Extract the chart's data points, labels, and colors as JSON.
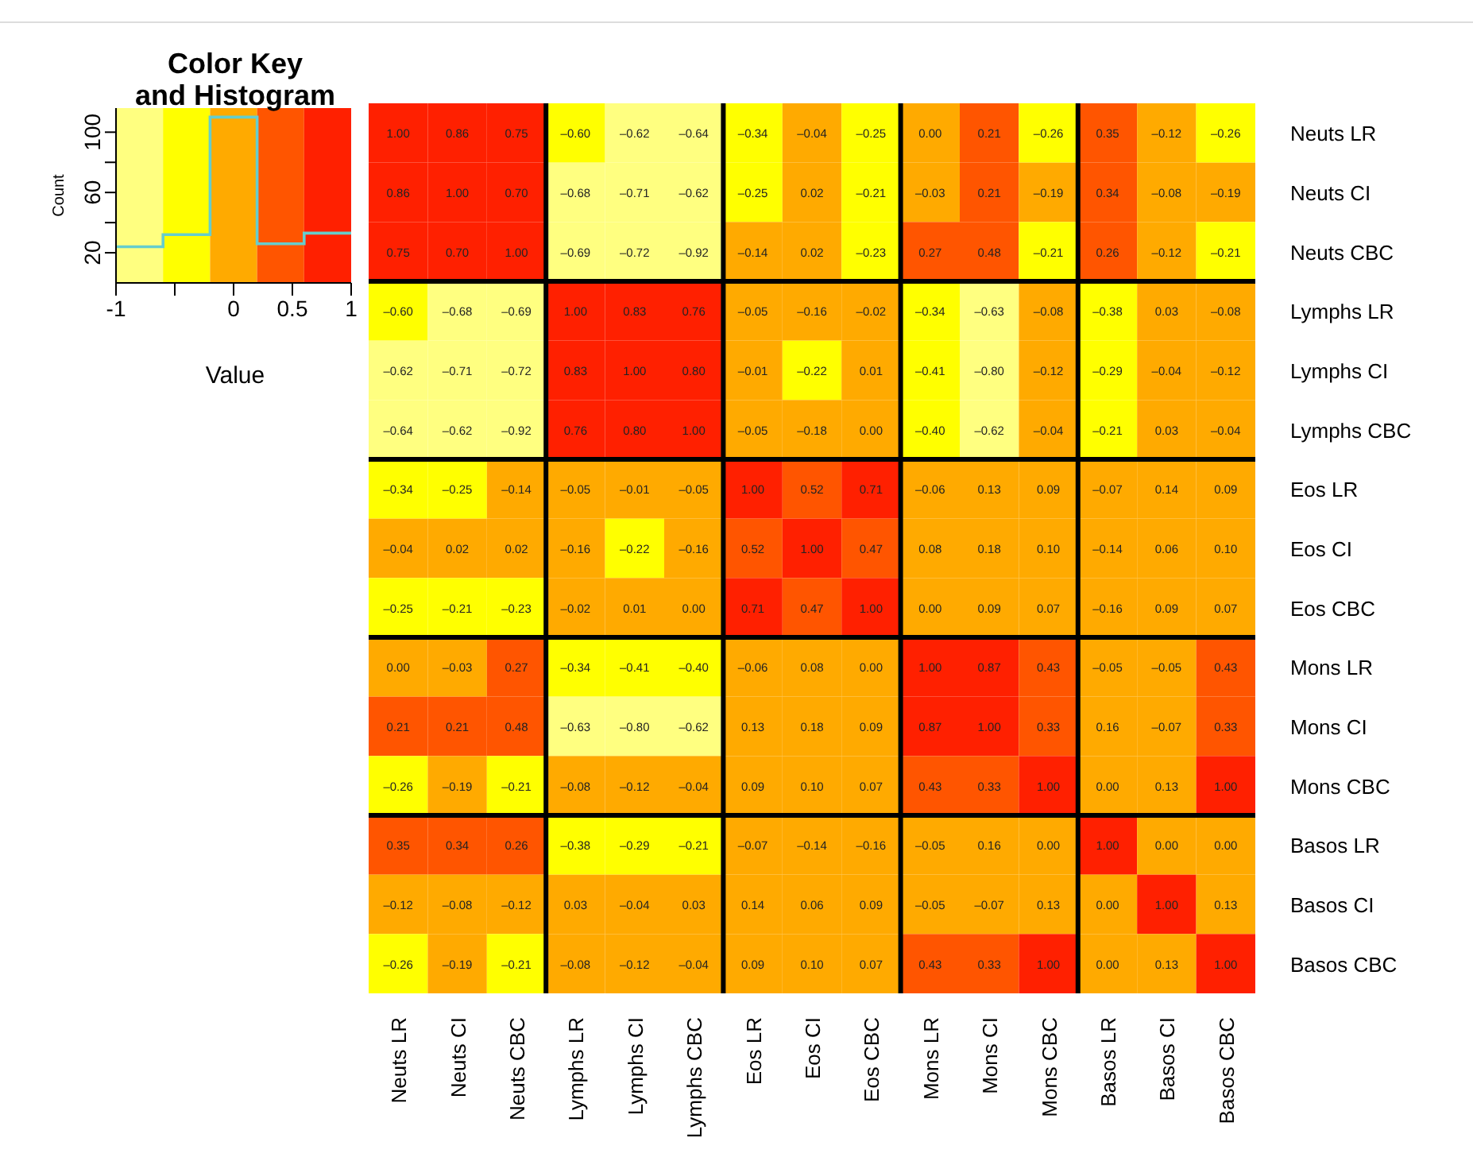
{
  "chart_data": [
    {
      "type": "histogram",
      "title": "Color Key\nand Histogram",
      "xlabel": "Value",
      "ylabel": "Count",
      "bins": [
        -1,
        -0.6,
        -0.2,
        0.2,
        0.6,
        1
      ],
      "values": [
        24,
        32,
        110,
        26,
        33
      ],
      "color": "#66cdcc",
      "xlim": [
        -1,
        1
      ],
      "xticks": [
        -1,
        {
          "value": -0.5,
          "label": null
        },
        0,
        0.5,
        1
      ],
      "bands": [
        {
          "axis": "x",
          "from": -1,
          "to": -0.6,
          "color": "#ffff80"
        },
        {
          "axis": "x",
          "from": -0.6,
          "to": -0.2,
          "color": "#ffff00"
        },
        {
          "axis": "x",
          "from": -0.2,
          "to": 0.2,
          "color": "#ffaa00"
        },
        {
          "axis": "x",
          "from": 0.2,
          "to": 0.6,
          "color": "#ff5500"
        },
        {
          "axis": "x",
          "from": 0.6,
          "to": 1,
          "color": "#ff2000"
        }
      ],
      "ylim": [
        0,
        116
      ],
      "yticks": [
        20,
        {
          "value": 40,
          "label": null
        },
        60,
        {
          "value": 80,
          "label": null
        },
        100
      ]
    },
    {
      "type": "heatmap",
      "categories": [
        "Neuts LR",
        "Neuts CI",
        "Neuts CBC",
        "Lymphs LR",
        "Lymphs CI",
        "Lymphs CBC",
        "Eos LR",
        "Eos CI",
        "Eos CBC",
        "Mons LR",
        "Mons CI",
        "Mons CBC",
        "Basos LR",
        "Basos CI",
        "Basos CBC"
      ],
      "y_categories": [
        "Neuts LR",
        "Neuts CI",
        "Neuts CBC",
        "Lymphs LR",
        "Lymphs CI",
        "Lymphs CBC",
        "Eos LR",
        "Eos CI",
        "Eos CBC",
        "Mons LR",
        "Mons CI",
        "Mons CBC",
        "Basos LR",
        "Basos CI",
        "Basos CBC"
      ],
      "cell_labels": [
        [
          "1.00",
          "0.86",
          "0.75",
          "–0.60",
          "–0.62",
          "–0.64",
          "–0.34",
          "–0.04",
          "–0.25",
          "0.00",
          "0.21",
          "–0.26",
          "0.35",
          "–0.12",
          "–0.26"
        ],
        [
          "0.86",
          "1.00",
          "0.70",
          "–0.68",
          "–0.71",
          "–0.62",
          "–0.25",
          "0.02",
          "–0.21",
          "–0.03",
          "0.21",
          "–0.19",
          "0.34",
          "–0.08",
          "–0.19"
        ],
        [
          "0.75",
          "0.70",
          "1.00",
          "–0.69",
          "–0.72",
          "–0.92",
          "–0.14",
          "0.02",
          "–0.23",
          "0.27",
          "0.48",
          "–0.21",
          "0.26",
          "–0.12",
          "–0.21"
        ],
        [
          "–0.60",
          "–0.68",
          "–0.69",
          "1.00",
          "0.83",
          "0.76",
          "–0.05",
          "–0.16",
          "–0.02",
          "–0.34",
          "–0.63",
          "–0.08",
          "–0.38",
          "0.03",
          "–0.08"
        ],
        [
          "–0.62",
          "–0.71",
          "–0.72",
          "0.83",
          "1.00",
          "0.80",
          "–0.01",
          "–0.22",
          "0.01",
          "–0.41",
          "–0.80",
          "–0.12",
          "–0.29",
          "–0.04",
          "–0.12"
        ],
        [
          "–0.64",
          "–0.62",
          "–0.92",
          "0.76",
          "0.80",
          "1.00",
          "–0.05",
          "–0.18",
          "0.00",
          "–0.40",
          "–0.62",
          "–0.04",
          "–0.21",
          "0.03",
          "–0.04"
        ],
        [
          "–0.34",
          "–0.25",
          "–0.14",
          "–0.05",
          "–0.01",
          "–0.05",
          "1.00",
          "0.52",
          "0.71",
          "–0.06",
          "0.13",
          "0.09",
          "–0.07",
          "0.14",
          "0.09"
        ],
        [
          "–0.04",
          "0.02",
          "0.02",
          "–0.16",
          "–0.22",
          "–0.16",
          "0.52",
          "1.00",
          "0.47",
          "0.08",
          "0.18",
          "0.10",
          "–0.14",
          "0.06",
          "0.10"
        ],
        [
          "–0.25",
          "–0.21",
          "–0.23",
          "–0.02",
          "0.01",
          "0.00",
          "0.71",
          "0.47",
          "1.00",
          "0.00",
          "0.09",
          "0.07",
          "–0.16",
          "0.09",
          "0.07"
        ],
        [
          "0.00",
          "–0.03",
          "0.27",
          "–0.34",
          "–0.41",
          "–0.40",
          "–0.06",
          "0.08",
          "0.00",
          "1.00",
          "0.87",
          "0.43",
          "–0.05",
          "–0.05",
          "0.43"
        ],
        [
          "0.21",
          "0.21",
          "0.48",
          "–0.63",
          "–0.80",
          "–0.62",
          "0.13",
          "0.18",
          "0.09",
          "0.87",
          "1.00",
          "0.33",
          "0.16",
          "–0.07",
          "0.33"
        ],
        [
          "–0.26",
          "–0.19",
          "–0.21",
          "–0.08",
          "–0.12",
          "–0.04",
          "0.09",
          "0.10",
          "0.07",
          "0.43",
          "0.33",
          "1.00",
          "0.00",
          "0.13",
          "1.00"
        ],
        [
          "0.35",
          "0.34",
          "0.26",
          "–0.38",
          "–0.29",
          "–0.21",
          "–0.07",
          "–0.14",
          "–0.16",
          "–0.05",
          "0.16",
          "0.00",
          "1.00",
          "0.00",
          "0.00"
        ],
        [
          "–0.12",
          "–0.08",
          "–0.12",
          "0.03",
          "–0.04",
          "0.03",
          "0.14",
          "0.06",
          "0.09",
          "–0.05",
          "–0.07",
          "0.13",
          "0.00",
          "1.00",
          "0.13"
        ],
        [
          "–0.26",
          "–0.19",
          "–0.21",
          "–0.08",
          "–0.12",
          "–0.04",
          "0.09",
          "0.10",
          "0.07",
          "0.43",
          "0.33",
          "1.00",
          "0.00",
          "0.13",
          "1.00"
        ]
      ],
      "cells": [
        [
          1.0,
          0.86,
          0.75,
          -0.6,
          -0.62,
          -0.64,
          -0.34,
          -0.04,
          -0.25,
          0.0,
          0.21,
          -0.26,
          0.35,
          -0.12,
          -0.26
        ],
        [
          0.86,
          1.0,
          0.7,
          -0.68,
          -0.71,
          -0.62,
          -0.25,
          0.02,
          -0.21,
          -0.03,
          0.21,
          -0.19,
          0.34,
          -0.08,
          -0.19
        ],
        [
          0.75,
          0.7,
          1.0,
          -0.69,
          -0.72,
          -0.92,
          -0.14,
          0.02,
          -0.23,
          0.27,
          0.48,
          -0.21,
          0.26,
          -0.12,
          -0.21
        ],
        [
          -0.6,
          -0.68,
          -0.69,
          1.0,
          0.83,
          0.76,
          -0.05,
          -0.16,
          -0.02,
          -0.34,
          -0.63,
          -0.08,
          -0.38,
          0.03,
          -0.08
        ],
        [
          -0.62,
          -0.71,
          -0.72,
          0.83,
          1.0,
          0.8,
          -0.01,
          -0.22,
          0.01,
          -0.41,
          -0.8,
          -0.12,
          -0.29,
          -0.04,
          -0.12
        ],
        [
          -0.64,
          -0.62,
          -0.92,
          0.76,
          0.8,
          1.0,
          -0.05,
          -0.18,
          0.0,
          -0.4,
          -0.62,
          -0.04,
          -0.21,
          0.03,
          -0.04
        ],
        [
          -0.34,
          -0.25,
          -0.14,
          -0.05,
          -0.01,
          -0.05,
          1.0,
          0.52,
          0.71,
          -0.06,
          0.13,
          0.09,
          -0.07,
          0.14,
          0.09
        ],
        [
          -0.04,
          0.02,
          0.02,
          -0.16,
          -0.22,
          -0.16,
          0.52,
          1.0,
          0.47,
          0.08,
          0.18,
          0.1,
          -0.14,
          0.06,
          0.1
        ],
        [
          -0.25,
          -0.21,
          -0.23,
          -0.02,
          0.01,
          0.0,
          0.71,
          0.47,
          1.0,
          0.0,
          0.09,
          0.07,
          -0.16,
          0.09,
          0.07
        ],
        [
          0.0,
          -0.03,
          0.27,
          -0.34,
          -0.41,
          -0.4,
          -0.06,
          0.08,
          0.0,
          1.0,
          0.87,
          0.43,
          -0.05,
          -0.05,
          0.43
        ],
        [
          0.21,
          0.21,
          0.48,
          -0.63,
          -0.8,
          -0.62,
          0.13,
          0.18,
          0.09,
          0.87,
          1.0,
          0.33,
          0.16,
          -0.07,
          0.33
        ],
        [
          -0.26,
          -0.19,
          -0.21,
          -0.08,
          -0.12,
          -0.04,
          0.09,
          0.1,
          0.07,
          0.43,
          0.33,
          1.0,
          0.0,
          0.13,
          1.0
        ],
        [
          0.35,
          0.34,
          0.26,
          -0.38,
          -0.29,
          -0.21,
          -0.07,
          -0.14,
          -0.16,
          -0.05,
          0.16,
          0.0,
          1.0,
          0.0,
          0.0
        ],
        [
          -0.12,
          -0.08,
          -0.12,
          0.03,
          -0.04,
          0.03,
          0.14,
          0.06,
          0.09,
          -0.05,
          -0.07,
          0.13,
          0.0,
          1.0,
          0.13
        ],
        [
          -0.26,
          -0.19,
          -0.21,
          -0.08,
          -0.12,
          -0.04,
          0.09,
          0.1,
          0.07,
          0.43,
          0.33,
          1.0,
          0.0,
          0.13,
          1.0
        ]
      ]
    }
  ]
}
